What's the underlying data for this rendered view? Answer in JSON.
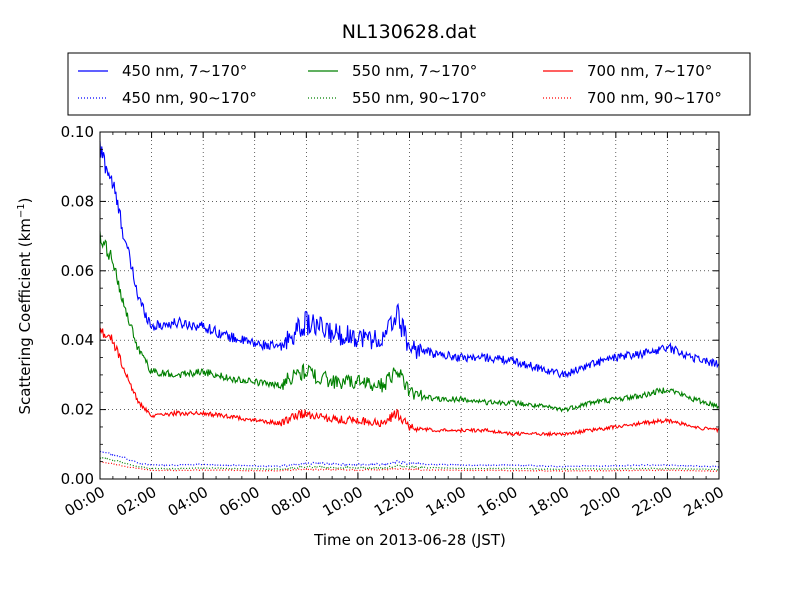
{
  "chart_data": {
    "type": "line",
    "title": "NL130628.dat",
    "xlabel": "Time on 2013-06-28 (JST)",
    "ylabel": "Scattering Coefficient (km",
    "ylabel_sup": "−1",
    "ylabel_close": ")",
    "xlim": [
      "00:00",
      "24:00"
    ],
    "ylim": [
      0,
      0.1
    ],
    "grid": true,
    "legend_position": "top",
    "x_ticks": [
      "00:00",
      "02:00",
      "04:00",
      "06:00",
      "08:00",
      "10:00",
      "12:00",
      "14:00",
      "16:00",
      "18:00",
      "20:00",
      "22:00",
      "24:00"
    ],
    "y_ticks": [
      "0.00",
      "0.02",
      "0.04",
      "0.06",
      "0.08",
      "0.10"
    ],
    "x_hours": [
      0,
      0.5,
      1,
      1.5,
      2,
      3,
      4,
      5,
      6,
      7,
      7.5,
      8,
      9,
      10,
      11,
      11.5,
      12,
      13,
      14,
      15,
      16,
      17,
      18,
      19,
      20,
      21,
      22,
      23,
      24
    ],
    "series": [
      {
        "name": "450 nm, 7∼170°",
        "color": "#0000ff",
        "style": "solid",
        "values": [
          0.095,
          0.085,
          0.068,
          0.052,
          0.044,
          0.045,
          0.044,
          0.041,
          0.039,
          0.038,
          0.042,
          0.045,
          0.042,
          0.041,
          0.04,
          0.048,
          0.038,
          0.036,
          0.035,
          0.035,
          0.034,
          0.032,
          0.03,
          0.033,
          0.035,
          0.036,
          0.038,
          0.035,
          0.033
        ]
      },
      {
        "name": "450 nm, 90∼170°",
        "color": "#0000ff",
        "style": "dotted",
        "values": [
          0.008,
          0.007,
          0.006,
          0.0045,
          0.004,
          0.004,
          0.0042,
          0.004,
          0.0038,
          0.0036,
          0.0042,
          0.0045,
          0.0043,
          0.0042,
          0.0042,
          0.005,
          0.0045,
          0.0042,
          0.004,
          0.004,
          0.004,
          0.0038,
          0.0036,
          0.0038,
          0.0038,
          0.004,
          0.004,
          0.0038,
          0.0035
        ]
      },
      {
        "name": "550 nm, 7∼170°",
        "color": "#008000",
        "style": "solid",
        "values": [
          0.069,
          0.063,
          0.048,
          0.037,
          0.031,
          0.03,
          0.031,
          0.029,
          0.028,
          0.027,
          0.03,
          0.031,
          0.028,
          0.028,
          0.027,
          0.032,
          0.025,
          0.023,
          0.023,
          0.022,
          0.022,
          0.021,
          0.02,
          0.022,
          0.023,
          0.024,
          0.026,
          0.023,
          0.021
        ]
      },
      {
        "name": "550 nm, 90∼170°",
        "color": "#008000",
        "style": "dotted",
        "values": [
          0.006,
          0.0055,
          0.0045,
          0.0035,
          0.003,
          0.003,
          0.0032,
          0.003,
          0.0029,
          0.0028,
          0.0032,
          0.0035,
          0.0033,
          0.0032,
          0.0032,
          0.0038,
          0.0034,
          0.0032,
          0.003,
          0.003,
          0.003,
          0.0029,
          0.0028,
          0.0029,
          0.0029,
          0.003,
          0.003,
          0.0029,
          0.0027
        ]
      },
      {
        "name": "700 nm, 7∼170°",
        "color": "#ff0000",
        "style": "solid",
        "values": [
          0.043,
          0.04,
          0.03,
          0.022,
          0.018,
          0.019,
          0.019,
          0.018,
          0.017,
          0.016,
          0.018,
          0.019,
          0.017,
          0.017,
          0.016,
          0.019,
          0.015,
          0.014,
          0.014,
          0.014,
          0.013,
          0.013,
          0.013,
          0.014,
          0.015,
          0.016,
          0.017,
          0.015,
          0.014
        ]
      },
      {
        "name": "700 nm, 90∼170°",
        "color": "#ff0000",
        "style": "dotted",
        "values": [
          0.005,
          0.0045,
          0.0036,
          0.003,
          0.0025,
          0.0025,
          0.0026,
          0.0025,
          0.0024,
          0.0024,
          0.0026,
          0.0028,
          0.0027,
          0.0026,
          0.0026,
          0.003,
          0.0027,
          0.0026,
          0.0025,
          0.0025,
          0.0024,
          0.0024,
          0.0023,
          0.0024,
          0.0024,
          0.0025,
          0.0025,
          0.0024,
          0.0022
        ]
      }
    ]
  }
}
